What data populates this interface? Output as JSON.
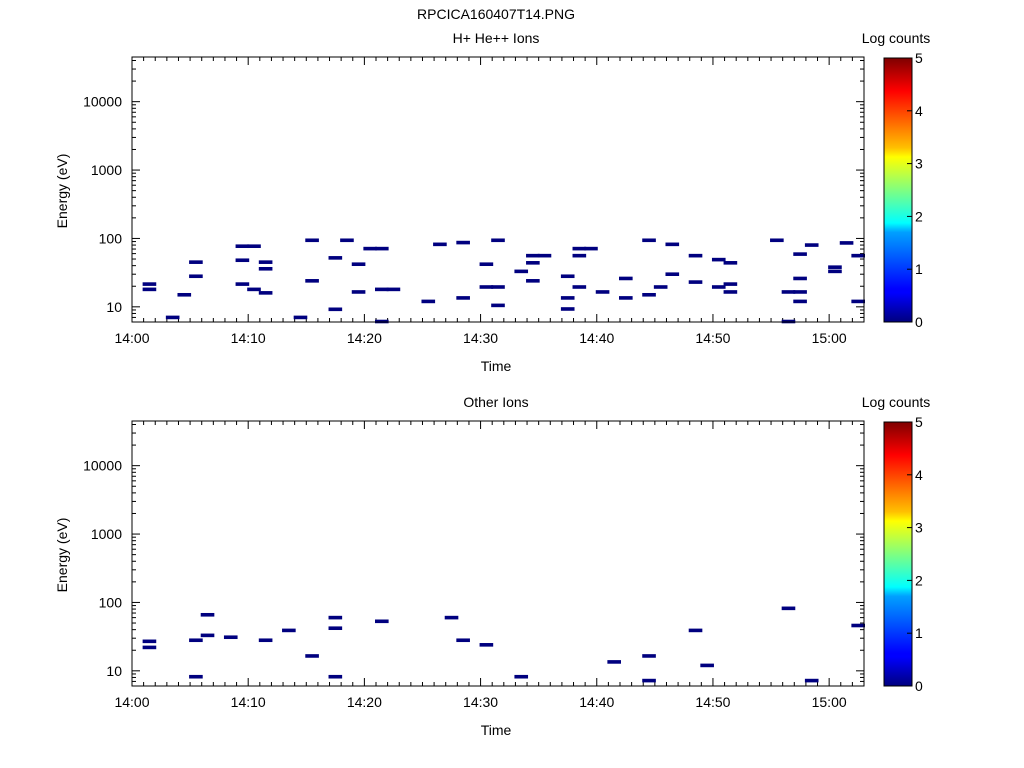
{
  "page_title": "RPCICA160407T14.PNG",
  "chart_data": [
    {
      "type": "heatmap",
      "title": "H+ He++ Ions",
      "xlabel": "Time",
      "ylabel": "Energy (eV)",
      "x_scale": "time",
      "y_scale": "log",
      "xlim": [
        "14:00",
        "15:03"
      ],
      "ylim": [
        6,
        45000
      ],
      "xticks": [
        "14:00",
        "14:10",
        "14:20",
        "14:30",
        "14:40",
        "14:50",
        "15:00"
      ],
      "yticks": [
        "10",
        "100",
        "1000",
        "10000"
      ],
      "colorbar": {
        "label": "Log counts",
        "ticks": [
          "0",
          "1",
          "2",
          "3",
          "4",
          "5"
        ],
        "range": [
          0,
          5
        ],
        "colormap": "jet"
      },
      "cells": [
        {
          "t": "14:01",
          "e": 21.5
        },
        {
          "t": "14:01",
          "e": 18
        },
        {
          "t": "14:03",
          "e": 7
        },
        {
          "t": "14:04",
          "e": 15
        },
        {
          "t": "14:05",
          "e": 45
        },
        {
          "t": "14:05",
          "e": 28
        },
        {
          "t": "14:09",
          "e": 77
        },
        {
          "t": "14:10",
          "e": 77
        },
        {
          "t": "14:09",
          "e": 48
        },
        {
          "t": "14:09",
          "e": 21.5
        },
        {
          "t": "14:10",
          "e": 18
        },
        {
          "t": "14:11",
          "e": 45
        },
        {
          "t": "14:11",
          "e": 36
        },
        {
          "t": "14:11",
          "e": 16
        },
        {
          "t": "14:14",
          "e": 7
        },
        {
          "t": "14:15",
          "e": 94
        },
        {
          "t": "14:15",
          "e": 24
        },
        {
          "t": "14:17",
          "e": 52
        },
        {
          "t": "14:17",
          "e": 9.2
        },
        {
          "t": "14:18",
          "e": 94
        },
        {
          "t": "14:19",
          "e": 42
        },
        {
          "t": "14:19",
          "e": 16.5
        },
        {
          "t": "14:20",
          "e": 71
        },
        {
          "t": "14:21",
          "e": 71
        },
        {
          "t": "14:21",
          "e": 18
        },
        {
          "t": "14:22",
          "e": 18
        },
        {
          "t": "14:21",
          "e": 6.1
        },
        {
          "t": "14:25",
          "e": 12
        },
        {
          "t": "14:26",
          "e": 82
        },
        {
          "t": "14:28",
          "e": 87
        },
        {
          "t": "14:28",
          "e": 13.5
        },
        {
          "t": "14:30",
          "e": 42
        },
        {
          "t": "14:30",
          "e": 19.5
        },
        {
          "t": "14:31",
          "e": 19.5
        },
        {
          "t": "14:31",
          "e": 94
        },
        {
          "t": "14:31",
          "e": 10.5
        },
        {
          "t": "14:33",
          "e": 33
        },
        {
          "t": "14:34",
          "e": 56
        },
        {
          "t": "14:34",
          "e": 44
        },
        {
          "t": "14:34",
          "e": 24
        },
        {
          "t": "14:35",
          "e": 56
        },
        {
          "t": "14:37",
          "e": 28
        },
        {
          "t": "14:37",
          "e": 13.5
        },
        {
          "t": "14:37",
          "e": 9.3
        },
        {
          "t": "14:38",
          "e": 71
        },
        {
          "t": "14:39",
          "e": 71
        },
        {
          "t": "14:38",
          "e": 56
        },
        {
          "t": "14:38",
          "e": 19.5
        },
        {
          "t": "14:40",
          "e": 16.5
        },
        {
          "t": "14:42",
          "e": 26
        },
        {
          "t": "14:42",
          "e": 13.5
        },
        {
          "t": "14:44",
          "e": 94
        },
        {
          "t": "14:44",
          "e": 15
        },
        {
          "t": "14:45",
          "e": 19.5
        },
        {
          "t": "14:46",
          "e": 82
        },
        {
          "t": "14:46",
          "e": 30
        },
        {
          "t": "14:48",
          "e": 56
        },
        {
          "t": "14:48",
          "e": 23
        },
        {
          "t": "14:50",
          "e": 49
        },
        {
          "t": "14:50",
          "e": 19.5
        },
        {
          "t": "14:51",
          "e": 44
        },
        {
          "t": "14:51",
          "e": 21.5
        },
        {
          "t": "14:51",
          "e": 16.5
        },
        {
          "t": "14:55",
          "e": 94
        },
        {
          "t": "14:56",
          "e": 16.5
        },
        {
          "t": "14:56",
          "e": 6.1
        },
        {
          "t": "14:57",
          "e": 16.5
        },
        {
          "t": "14:57",
          "e": 59
        },
        {
          "t": "14:57",
          "e": 26
        },
        {
          "t": "14:57",
          "e": 12
        },
        {
          "t": "14:58",
          "e": 80
        },
        {
          "t": "15:00",
          "e": 38
        },
        {
          "t": "15:00",
          "e": 33
        },
        {
          "t": "15:01",
          "e": 86
        },
        {
          "t": "15:02",
          "e": 56
        },
        {
          "t": "15:02",
          "e": 12
        }
      ]
    },
    {
      "type": "heatmap",
      "title": "Other Ions",
      "xlabel": "Time",
      "ylabel": "Energy (eV)",
      "x_scale": "time",
      "y_scale": "log",
      "xlim": [
        "14:00",
        "15:03"
      ],
      "ylim": [
        6,
        45000
      ],
      "xticks": [
        "14:00",
        "14:10",
        "14:20",
        "14:30",
        "14:40",
        "14:50",
        "15:00"
      ],
      "yticks": [
        "10",
        "100",
        "1000",
        "10000"
      ],
      "colorbar": {
        "label": "Log counts",
        "ticks": [
          "0",
          "1",
          "2",
          "3",
          "4",
          "5"
        ],
        "range": [
          0,
          5
        ],
        "colormap": "jet"
      },
      "cells": [
        {
          "t": "14:01",
          "e": 27
        },
        {
          "t": "14:01",
          "e": 22
        },
        {
          "t": "14:05",
          "e": 28
        },
        {
          "t": "14:05",
          "e": 8.2
        },
        {
          "t": "14:06",
          "e": 66
        },
        {
          "t": "14:06",
          "e": 33
        },
        {
          "t": "14:08",
          "e": 31
        },
        {
          "t": "14:11",
          "e": 28
        },
        {
          "t": "14:13",
          "e": 39
        },
        {
          "t": "14:15",
          "e": 16.5
        },
        {
          "t": "14:17",
          "e": 60
        },
        {
          "t": "14:17",
          "e": 42
        },
        {
          "t": "14:17",
          "e": 8.2
        },
        {
          "t": "14:21",
          "e": 53
        },
        {
          "t": "14:27",
          "e": 60
        },
        {
          "t": "14:28",
          "e": 28
        },
        {
          "t": "14:30",
          "e": 24
        },
        {
          "t": "14:33",
          "e": 8.2
        },
        {
          "t": "14:41",
          "e": 13.5
        },
        {
          "t": "14:44",
          "e": 16.5
        },
        {
          "t": "14:44",
          "e": 7.2
        },
        {
          "t": "14:48",
          "e": 39
        },
        {
          "t": "14:49",
          "e": 12
        },
        {
          "t": "14:56",
          "e": 82
        },
        {
          "t": "14:58",
          "e": 7.2
        },
        {
          "t": "15:02",
          "e": 46
        }
      ]
    }
  ]
}
